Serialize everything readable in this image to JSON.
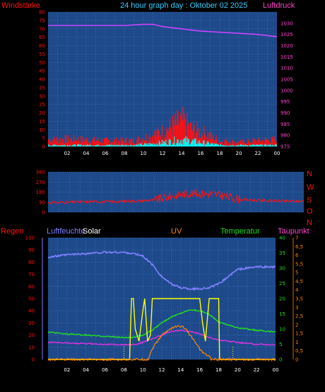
{
  "chart_data": [
    {
      "type": "line",
      "title": "24 hour graph day : Oktober 02 2025",
      "left_label": "Windstärke",
      "right_label": "Luftdruck",
      "x_ticks": [
        "02",
        "04",
        "06",
        "08",
        "10",
        "12",
        "14",
        "16",
        "18",
        "20",
        "22",
        "00"
      ],
      "ylim_left": [
        0,
        80
      ],
      "y_ticks_left": [
        "0",
        "5",
        "10",
        "15",
        "20",
        "25",
        "30",
        "35",
        "40",
        "45",
        "50",
        "55",
        "60",
        "65",
        "70",
        "75",
        "80"
      ],
      "ylim_right": [
        975,
        1035
      ],
      "y_ticks_right": [
        "975",
        "980",
        "985",
        "990",
        "995",
        "1000",
        "1005",
        "1010",
        "1015",
        "1020",
        "1025",
        "1030"
      ],
      "series": [
        {
          "key": "pressure",
          "color": "#cc44ff",
          "x": [
            0,
            2,
            4,
            6,
            8,
            10,
            11,
            12,
            14,
            16,
            18,
            20,
            22,
            24
          ],
          "y": [
            1029,
            1029,
            1029,
            1029,
            1029,
            1029.5,
            1029.5,
            1028.5,
            1027.5,
            1026.5,
            1026,
            1025.5,
            1025,
            1024
          ]
        },
        {
          "key": "gust",
          "color": "#ff1111",
          "x": [
            0,
            3,
            6,
            9,
            10,
            11,
            12,
            13,
            13.5,
            14,
            14.5,
            15,
            16,
            17,
            18,
            20,
            22,
            24
          ],
          "y": [
            5,
            5,
            4,
            4,
            6,
            8,
            10,
            14,
            16,
            18,
            15,
            12,
            10,
            7,
            4,
            3,
            4,
            5
          ]
        },
        {
          "key": "wind",
          "color": "#00ffff",
          "x": [
            0,
            3,
            6,
            9,
            11,
            12,
            13,
            14,
            15,
            16,
            17,
            18,
            20,
            24
          ],
          "y": [
            1,
            1,
            1,
            1,
            2,
            3,
            4,
            5,
            4,
            3,
            2,
            1,
            1,
            1
          ]
        }
      ],
      "grid": true
    },
    {
      "type": "line",
      "right_letters": [
        "N",
        "W",
        "S",
        "O",
        "N"
      ],
      "x_ticks": [
        "02",
        "04",
        "06",
        "08",
        "10",
        "12",
        "14",
        "16",
        "18",
        "20",
        "22",
        "00"
      ],
      "ylim": [
        0,
        360
      ],
      "y_ticks": [
        "0",
        "90",
        "180",
        "270",
        "360"
      ],
      "series": [
        {
          "key": "direction",
          "color": "#ff1111",
          "x": [
            0,
            2,
            4,
            6,
            8,
            10,
            11,
            12,
            13,
            14,
            15,
            16,
            17,
            18,
            20,
            22,
            24
          ],
          "y": [
            85,
            90,
            95,
            95,
            100,
            110,
            130,
            150,
            165,
            170,
            165,
            155,
            135,
            115,
            105,
            100,
            100
          ]
        }
      ],
      "grid": true
    },
    {
      "type": "line",
      "labels": {
        "rain": "Regen",
        "humidity": "Luftfeuchte",
        "solar": "Solar",
        "uv": "UV",
        "temperature": "Temperatur",
        "dewpoint": "Taupunkt"
      },
      "x_ticks": [
        "02",
        "04",
        "06",
        "08",
        "10",
        "12",
        "14",
        "16",
        "18",
        "20",
        "22",
        "00"
      ],
      "ylim_rain": [
        0,
        100
      ],
      "y_ticks_rain": [
        "0",
        "10",
        "20",
        "30",
        "40",
        "50",
        "60",
        "70",
        "80",
        "90",
        "100"
      ],
      "ylim_temperature": [
        0,
        40
      ],
      "y_ticks_temperature": [
        "0",
        "5",
        "10",
        "15",
        "20",
        "25",
        "30",
        "35",
        "40"
      ],
      "ylim_uv": [
        0,
        7
      ],
      "y_ticks_uv": [
        "0",
        "0.5",
        "1",
        "1.5",
        "2",
        "2.5",
        "3",
        "3.5",
        "4",
        "4.5",
        "5",
        "5.5",
        "6",
        "6.5",
        "7"
      ],
      "series": [
        {
          "key": "humidity",
          "color": "#8080ff",
          "x": [
            0,
            1,
            2,
            4,
            6,
            8,
            9,
            10,
            11,
            12,
            13,
            14,
            15,
            16,
            17,
            18,
            19,
            20,
            22,
            24
          ],
          "y": [
            84,
            85,
            86,
            87,
            88,
            88,
            87,
            85,
            78,
            68,
            62,
            59,
            58,
            58,
            59,
            62,
            68,
            74,
            76,
            76
          ]
        },
        {
          "key": "temperature",
          "color": "#22dd22",
          "x": [
            0,
            1,
            2,
            4,
            6,
            8,
            9,
            10,
            11,
            12,
            13,
            14,
            15,
            16,
            17,
            18,
            20,
            22,
            24
          ],
          "y": [
            9,
            8.6,
            8.4,
            8,
            7.6,
            7.2,
            7.2,
            8,
            9.6,
            12,
            14,
            15.2,
            16.4,
            16,
            14.8,
            12.4,
            10.4,
            9.6,
            9
          ]
        },
        {
          "key": "dewpoint",
          "color": "#dd33dd",
          "x": [
            0,
            2,
            4,
            6,
            8,
            9,
            10,
            11,
            12,
            13,
            14,
            15,
            16,
            17,
            18,
            20,
            22,
            24
          ],
          "y": [
            5.6,
            5.4,
            5.2,
            5,
            4.8,
            4.8,
            5.6,
            6.8,
            8,
            9.2,
            9.6,
            9.2,
            8.4,
            7.2,
            6.4,
            5.6,
            5,
            4.8
          ]
        },
        {
          "key": "solar",
          "color": "#ffff00",
          "x": [
            0,
            8.6,
            8.8,
            9,
            9.2,
            9.6,
            10,
            10.2,
            10.5,
            10.8,
            11,
            11.5,
            12,
            12.5,
            13,
            13.5,
            14,
            14.5,
            15,
            15.5,
            16,
            16.3,
            16.6,
            17,
            17.5,
            18,
            18.1,
            18.3,
            24
          ],
          "y": [
            0,
            0,
            50,
            50,
            25,
            15,
            40,
            50,
            15,
            20,
            50,
            50,
            50,
            50,
            50,
            50,
            50,
            50,
            50,
            50,
            50,
            30,
            15,
            50,
            50,
            50,
            0,
            0,
            0
          ]
        },
        {
          "key": "uv",
          "color": "#ff8800",
          "x": [
            0,
            10.6,
            10.8,
            11.2,
            11.5,
            12,
            13,
            13.5,
            14,
            14.5,
            15,
            15.5,
            16,
            16.5,
            17,
            17.2,
            24
          ],
          "y": [
            0,
            0,
            0.4,
            0.8,
            1,
            1.4,
            1.8,
            1.9,
            1.9,
            1.8,
            1.4,
            1,
            0.6,
            0.3,
            0.2,
            0,
            0
          ]
        }
      ],
      "grid": true
    }
  ],
  "colors": {
    "panel": "#1e4a8c",
    "grid": "#4a7ab8",
    "red": "#ff1111",
    "magenta": "#ff44cc",
    "cyan": "#33ccff"
  }
}
